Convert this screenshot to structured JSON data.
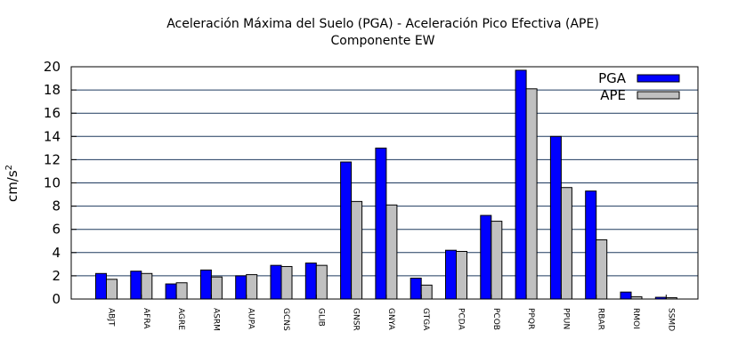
{
  "chart_data": {
    "type": "bar",
    "title": "Aceleración Máxima del Suelo (PGA) -  Aceleración Pico Efectiva (APE)",
    "subtitle": "Componente EW",
    "ylabel": "cm/s",
    "ylabel_superscript": "2",
    "xlabel": "",
    "ylim": [
      0,
      20
    ],
    "yticks": [
      0,
      2,
      4,
      6,
      8,
      10,
      12,
      14,
      16,
      18,
      20
    ],
    "grid": true,
    "legend_position": "top-right",
    "categories": [
      "ABJT",
      "AFRA",
      "AGRE",
      "ASRM",
      "AUPA",
      "GCNS",
      "GLIB",
      "GNSR",
      "GNYA",
      "GTGA",
      "PCDA",
      "PCOB",
      "PPQR",
      "PPUN",
      "RBAR",
      "RMOI",
      "SSMD"
    ],
    "series": [
      {
        "name": "PGA",
        "color": "#0000ff",
        "values": [
          2.2,
          2.4,
          1.3,
          2.5,
          2.0,
          2.9,
          3.1,
          11.8,
          13.0,
          1.8,
          4.2,
          7.2,
          19.7,
          14.0,
          9.3,
          0.6,
          0.15
        ]
      },
      {
        "name": "APE",
        "color": "#c0c0c0",
        "values": [
          1.7,
          2.2,
          1.4,
          1.9,
          2.1,
          2.8,
          2.9,
          8.4,
          8.1,
          1.2,
          4.1,
          6.7,
          18.1,
          9.6,
          5.1,
          0.2,
          0.12
        ]
      }
    ]
  }
}
